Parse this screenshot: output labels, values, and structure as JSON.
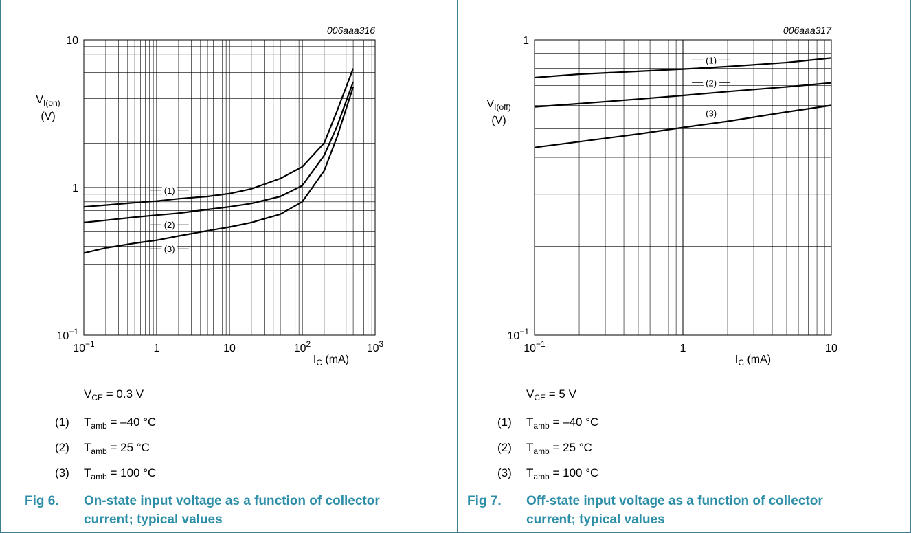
{
  "chart_data": [
    {
      "type": "line",
      "code": "006aaa316",
      "x_scale": "log",
      "y_scale": "log",
      "xlim": [
        0.1,
        1000
      ],
      "ylim": [
        0.1,
        10
      ],
      "xlabel": "I",
      "xlabel_sub": "C",
      "xlabel_unit": " (mA)",
      "ylabel": "V",
      "ylabel_sub": "I(on)",
      "ylabel_unit": "(V)",
      "x_ticks": [
        {
          "value": 0.1,
          "base": "10",
          "sup": "−1"
        },
        {
          "value": 1,
          "base": "1",
          "sup": ""
        },
        {
          "value": 10,
          "base": "10",
          "sup": ""
        },
        {
          "value": 100,
          "base": "10",
          "sup": "2"
        },
        {
          "value": 1000,
          "base": "10",
          "sup": "3"
        }
      ],
      "y_ticks": [
        {
          "value": 0.1,
          "base": "10",
          "sup": "−1"
        },
        {
          "value": 1,
          "base": "1",
          "sup": ""
        },
        {
          "value": 10,
          "base": "10",
          "sup": ""
        }
      ],
      "grid": true,
      "series": [
        {
          "name": "(1)",
          "x": [
            0.1,
            0.2,
            0.5,
            1,
            2,
            5,
            10,
            20,
            50,
            100,
            200,
            300,
            500
          ],
          "y": [
            0.74,
            0.76,
            0.79,
            0.81,
            0.84,
            0.87,
            0.91,
            0.98,
            1.15,
            1.38,
            2.0,
            3.3,
            6.4
          ]
        },
        {
          "name": "(2)",
          "x": [
            0.1,
            0.2,
            0.5,
            1,
            2,
            5,
            10,
            20,
            50,
            100,
            200,
            300,
            500
          ],
          "y": [
            0.58,
            0.6,
            0.63,
            0.65,
            0.67,
            0.71,
            0.74,
            0.78,
            0.87,
            1.03,
            1.65,
            2.6,
            5.2
          ]
        },
        {
          "name": "(3)",
          "x": [
            0.1,
            0.2,
            0.5,
            1,
            2,
            5,
            10,
            20,
            50,
            100,
            200,
            300,
            500
          ],
          "y": [
            0.36,
            0.39,
            0.42,
            0.44,
            0.47,
            0.51,
            0.54,
            0.58,
            0.66,
            0.8,
            1.3,
            2.2,
            4.8
          ]
        }
      ],
      "curve_labels": [
        {
          "text": "(1)",
          "x": 1.5,
          "y": 0.96
        },
        {
          "text": "(2)",
          "x": 1.5,
          "y": 0.56
        },
        {
          "text": "(3)",
          "x": 1.5,
          "y": 0.385
        }
      ]
    },
    {
      "type": "line",
      "code": "006aaa317",
      "x_scale": "log",
      "y_scale": "log",
      "xlim": [
        0.1,
        10
      ],
      "ylim": [
        0.1,
        1
      ],
      "xlabel": "I",
      "xlabel_sub": "C",
      "xlabel_unit": " (mA)",
      "ylabel": "V",
      "ylabel_sub": "I(off)",
      "ylabel_unit": "(V)",
      "x_ticks": [
        {
          "value": 0.1,
          "base": "10",
          "sup": "−1"
        },
        {
          "value": 1,
          "base": "1",
          "sup": ""
        },
        {
          "value": 10,
          "base": "10",
          "sup": ""
        }
      ],
      "y_ticks": [
        {
          "value": 0.1,
          "base": "10",
          "sup": "−1"
        },
        {
          "value": 1,
          "base": "1",
          "sup": ""
        }
      ],
      "grid": true,
      "series": [
        {
          "name": "(1)",
          "x": [
            0.1,
            0.2,
            0.5,
            1,
            2,
            5,
            10
          ],
          "y": [
            0.745,
            0.765,
            0.782,
            0.796,
            0.812,
            0.838,
            0.868
          ]
        },
        {
          "name": "(2)",
          "x": [
            0.1,
            0.2,
            0.5,
            1,
            2,
            5,
            10
          ],
          "y": [
            0.593,
            0.608,
            0.63,
            0.648,
            0.668,
            0.693,
            0.715
          ]
        },
        {
          "name": "(3)",
          "x": [
            0.1,
            0.2,
            0.5,
            1,
            2,
            5,
            10
          ],
          "y": [
            0.432,
            0.452,
            0.48,
            0.505,
            0.53,
            0.57,
            0.6
          ]
        }
      ],
      "curve_labels": [
        {
          "text": "(1)",
          "x": 1.55,
          "y": 0.855
        },
        {
          "text": "(2)",
          "x": 1.55,
          "y": 0.715
        },
        {
          "text": "(3)",
          "x": 1.55,
          "y": 0.565
        }
      ]
    }
  ],
  "panels": [
    {
      "condition": {
        "symbol": "V",
        "sub": "CE",
        "value": " = 0.3 V"
      },
      "notes": [
        {
          "num": "(1)",
          "symbol": "T",
          "sub": "amb",
          "value": " = –40 °C"
        },
        {
          "num": "(2)",
          "symbol": "T",
          "sub": "amb",
          "value": " = 25 °C"
        },
        {
          "num": "(3)",
          "symbol": "T",
          "sub": "amb",
          "value": " = 100 °C"
        }
      ],
      "caption": {
        "number": "Fig 6.",
        "text": "On-state input voltage as a function of collector current; typical values"
      }
    },
    {
      "condition": {
        "symbol": "V",
        "sub": "CE",
        "value": " = 5 V"
      },
      "notes": [
        {
          "num": "(1)",
          "symbol": "T",
          "sub": "amb",
          "value": " = –40 °C"
        },
        {
          "num": "(2)",
          "symbol": "T",
          "sub": "amb",
          "value": " = 25 °C"
        },
        {
          "num": "(3)",
          "symbol": "T",
          "sub": "amb",
          "value": " = 100 °C"
        }
      ],
      "caption": {
        "number": "Fig 7.",
        "text": "Off-state input voltage as a function of collector current; typical values"
      }
    }
  ]
}
